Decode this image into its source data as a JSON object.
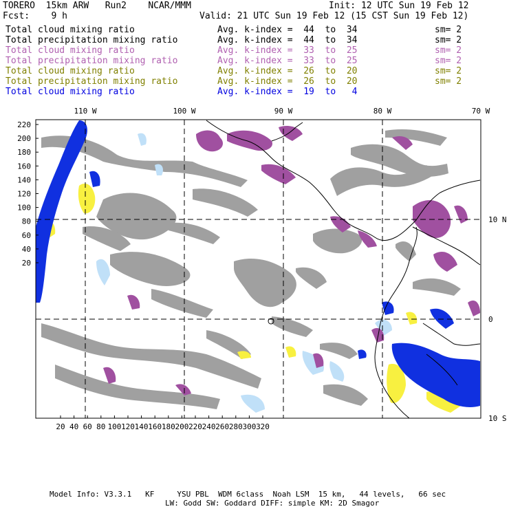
{
  "header": {
    "model": "TORERO  15km ARW   Run2    NCAR/MMM",
    "init": "Init: 12 UTC Sun 19 Feb 12",
    "fcst": "Fcst:    9 h",
    "valid": "Valid: 21 UTC Sun 19 Feb 12 (15 CST Sun 19 Feb 12)"
  },
  "legend": [
    {
      "field": "Total cloud mixing ratio",
      "index": "Avg. k-index =  44  to  34",
      "sm": "sm= 2",
      "color": "#000000"
    },
    {
      "field": "Total precipitation mixing ratio",
      "index": "Avg. k-index =  44  to  34",
      "sm": "sm= 2",
      "color": "#000000"
    },
    {
      "field": "Total cloud mixing ratio",
      "index": "Avg. k-index =  33  to  25",
      "sm": "sm= 2",
      "color": "#b060b0"
    },
    {
      "field": "Total precipitation mixing ratio",
      "index": "Avg. k-index =  33  to  25",
      "sm": "sm= 2",
      "color": "#b060b0"
    },
    {
      "field": "Total cloud mixing ratio",
      "index": "Avg. k-index =  26  to  20",
      "sm": "sm= 2",
      "color": "#808000"
    },
    {
      "field": "Total precipitation mixing ratio",
      "index": "Avg. k-index =  26  to  20",
      "sm": "sm= 2",
      "color": "#808000"
    },
    {
      "field": "Total cloud mixing ratio",
      "index": "Avg. k-index =  19  to   4",
      "sm": "",
      "color": "#0000e0"
    }
  ],
  "axes": {
    "top_lon": [
      "110 W",
      "100 W",
      "90 W",
      "80 W",
      "70 W"
    ],
    "right_lat": [
      "10 N",
      "0",
      "10 S"
    ],
    "left_y": [
      "220",
      "200",
      "180",
      "160",
      "140",
      "120",
      "100",
      "80",
      "60",
      "40",
      "20"
    ],
    "bottom_x": [
      "20",
      "40",
      "60",
      "80",
      "100",
      "120",
      "140",
      "160",
      "180",
      "200",
      "220",
      "240",
      "260",
      "280",
      "300",
      "320"
    ]
  },
  "colors": {
    "cloud_gray": "#a0a0a0",
    "mid_purple": "#a050a0",
    "low_blue": "#1030e0",
    "light_blue": "#c0e0f8",
    "yellow": "#f8f040"
  },
  "footer": {
    "line1": "Model Info: V3.3.1   KF     YSU PBL  WDM 6class  Noah LSM  15 km,   44 levels,   66 sec",
    "line2": "LW: Godd SW: Goddard DIFF: simple KM: 2D Smagor"
  }
}
